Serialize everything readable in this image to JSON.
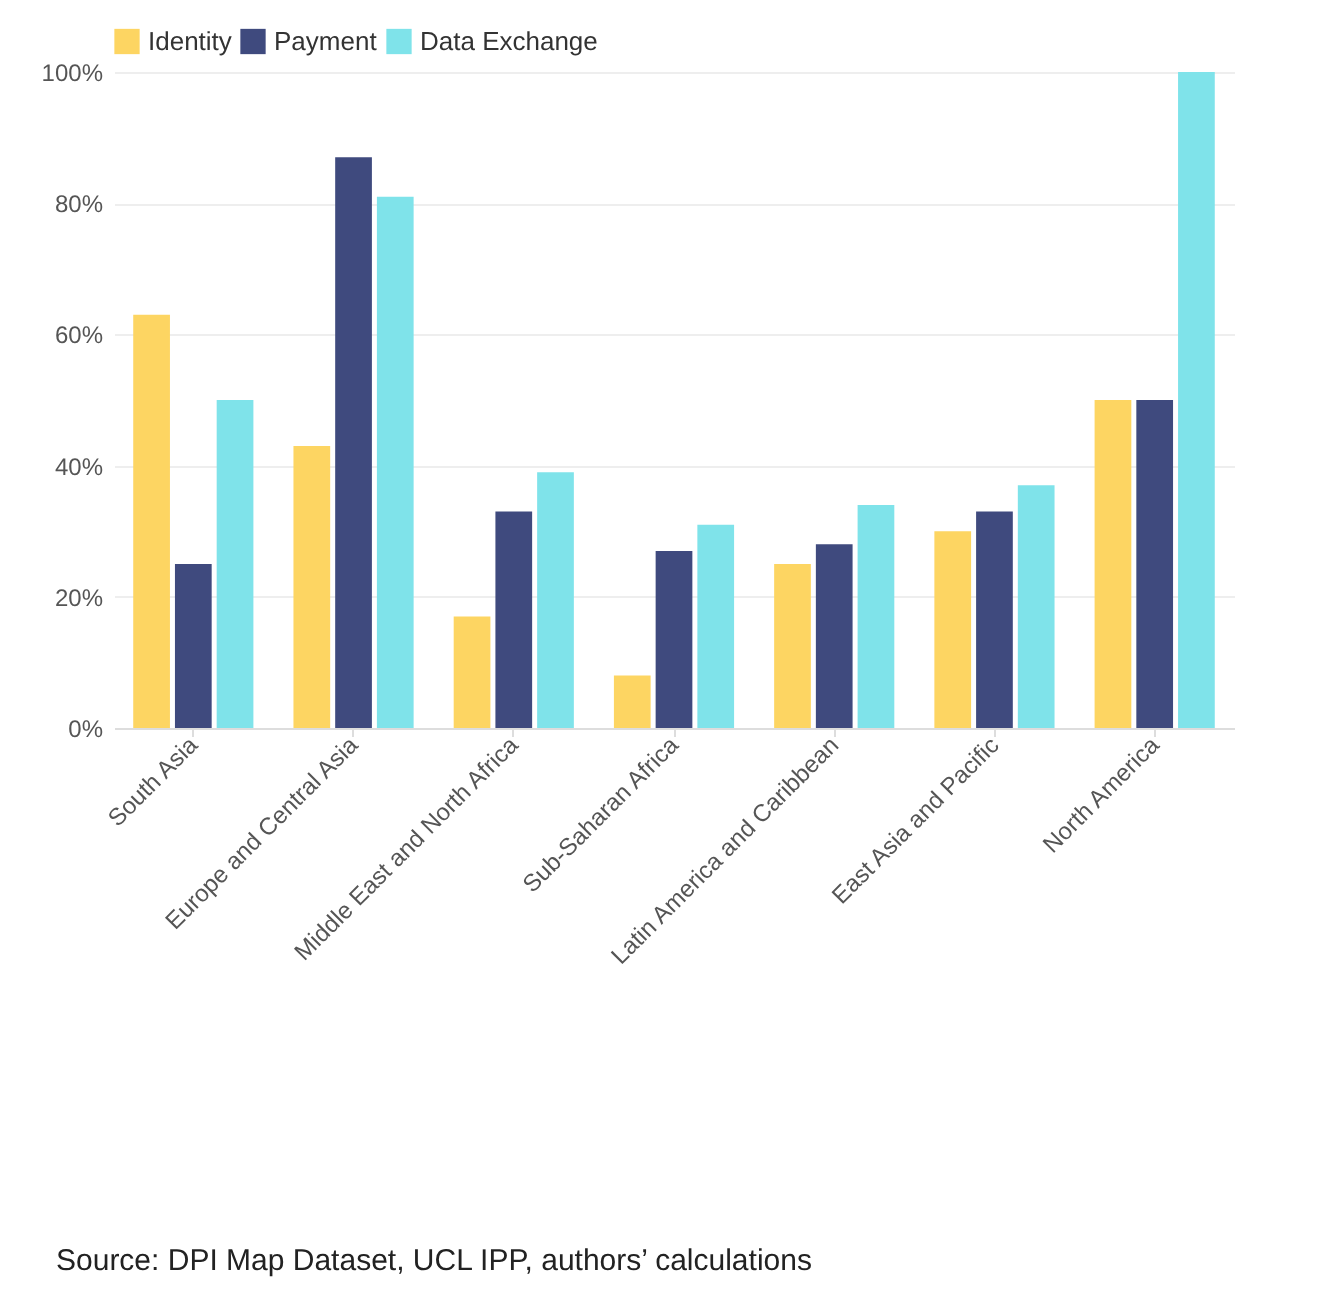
{
  "chart_data": {
    "type": "bar",
    "categories": [
      "South Asia",
      "Europe and Central Asia",
      "Middle East and North Africa",
      "Sub-Saharan Africa",
      "Latin America and Caribbean",
      "East Asia and Pacific",
      "North America"
    ],
    "series": [
      {
        "name": "Identity",
        "color": "#fdd562",
        "values": [
          63,
          43,
          17,
          8,
          25,
          30,
          50
        ]
      },
      {
        "name": "Payment",
        "color": "#3f4a7e",
        "values": [
          25,
          87,
          33,
          27,
          28,
          33,
          50
        ]
      },
      {
        "name": "Data Exchange",
        "color": "#7fe3ea",
        "values": [
          50,
          81,
          39,
          31,
          34,
          37,
          100
        ]
      }
    ],
    "ylim": [
      0,
      100
    ],
    "yticks": [
      {
        "value": 0,
        "label": "0%"
      },
      {
        "value": 20,
        "label": "20%"
      },
      {
        "value": 40,
        "label": "40%"
      },
      {
        "value": 60,
        "label": "60%"
      },
      {
        "value": 80,
        "label": "80%"
      },
      {
        "value": 100,
        "label": "100%"
      }
    ],
    "grid": "y",
    "legend": "top left",
    "annotations": [
      "Source: DPI Map Dataset, UCL IPP, authors’ calculations"
    ]
  }
}
